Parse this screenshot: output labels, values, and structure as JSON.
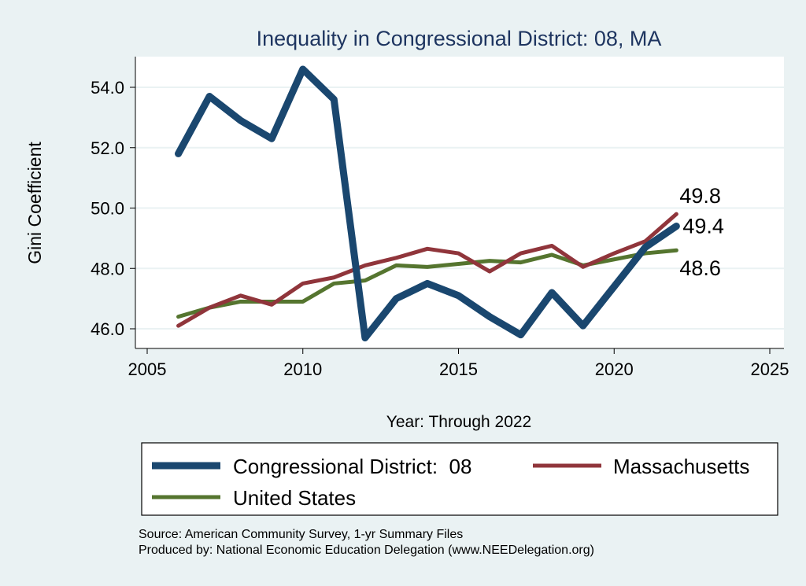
{
  "chart_data": {
    "type": "line",
    "title": "Inequality in Congressional District:  08, MA",
    "xlabel": "Year: Through 2022",
    "ylabel": "Gini Coefficient",
    "xlim": [
      2005,
      2025
    ],
    "ylim": [
      45.5,
      55.0
    ],
    "x_ticks": [
      2005,
      2010,
      2015,
      2020,
      2025
    ],
    "x_tick_labels": [
      "2005",
      "2010",
      "2015",
      "2020",
      "2025"
    ],
    "y_ticks": [
      46,
      48,
      50,
      52,
      54
    ],
    "y_tick_labels": [
      "46.0",
      "48.0",
      "50.0",
      "52.0",
      "54.0"
    ],
    "grid": true,
    "legend_position": "bottom",
    "x": [
      2006,
      2007,
      2008,
      2009,
      2010,
      2011,
      2012,
      2013,
      2014,
      2015,
      2016,
      2017,
      2018,
      2019,
      2020,
      2021,
      2022
    ],
    "series": [
      {
        "name": "Congressional District:  08",
        "color": "#1a476f",
        "values": [
          51.8,
          53.7,
          52.9,
          52.3,
          54.6,
          53.6,
          45.7,
          47.0,
          47.5,
          47.1,
          46.4,
          45.8,
          47.2,
          46.1,
          47.4,
          48.7,
          49.4
        ],
        "end_label": "49.4"
      },
      {
        "name": "Massachusetts",
        "color": "#90353b",
        "values": [
          46.1,
          46.7,
          47.1,
          46.8,
          47.5,
          47.7,
          48.1,
          48.35,
          48.65,
          48.5,
          47.9,
          48.5,
          48.75,
          48.05,
          48.5,
          48.9,
          49.8
        ],
        "end_label": "49.8"
      },
      {
        "name": "United States",
        "color": "#55752f",
        "values": [
          46.4,
          46.7,
          46.9,
          46.9,
          46.9,
          47.5,
          47.6,
          48.1,
          48.05,
          48.15,
          48.25,
          48.2,
          48.45,
          48.1,
          48.3,
          48.5,
          48.6
        ],
        "end_label": "48.6"
      }
    ]
  },
  "notes": {
    "source": "Source: American Community Survey, 1-yr Summary Files",
    "produced_by": "Produced by: National Economic Education Delegation (www.NEEDelegation.org)"
  },
  "colors": {
    "background": "#eaf2f3",
    "plot_background": "#ffffff",
    "grid": "#eaf2f3"
  }
}
